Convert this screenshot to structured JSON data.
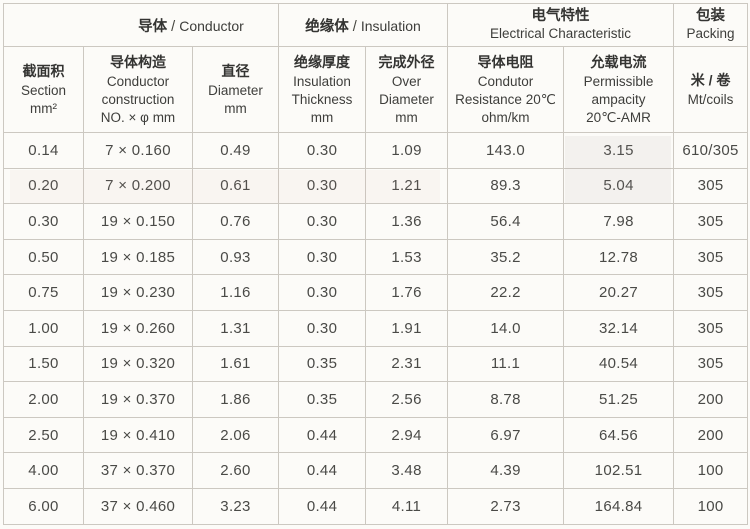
{
  "colors": {
    "background": "#fcfbf8",
    "border": "#ccc8c1",
    "header_text": "#343432",
    "body_text": "#4a4a47"
  },
  "table": {
    "groups": [
      {
        "key": "conductor",
        "zh": "导体",
        "separator": " / ",
        "en": "Conductor",
        "colspan": 3,
        "two_line": false
      },
      {
        "key": "insulation",
        "zh": "绝缘体",
        "separator": " / ",
        "en": "Insulation",
        "colspan": 2,
        "two_line": false
      },
      {
        "key": "electrical",
        "zh": "电气特性",
        "en": "Electrical Characteristic",
        "colspan": 2,
        "two_line": true
      },
      {
        "key": "packing",
        "zh": "包装",
        "en": "Packing",
        "colspan": 1,
        "two_line": true
      }
    ],
    "columns": [
      {
        "key": "section",
        "zh": "截面积",
        "en": [
          "Section",
          "mm²"
        ]
      },
      {
        "key": "construction",
        "zh": "导体构造",
        "en": [
          "Conductor",
          "construction",
          "NO. × φ mm"
        ]
      },
      {
        "key": "diameter",
        "zh": "直径",
        "en": [
          "Diameter",
          "mm"
        ]
      },
      {
        "key": "insulation-thickness",
        "zh": "绝缘厚度",
        "en": [
          "Insulation",
          "Thickness",
          "mm"
        ]
      },
      {
        "key": "over-diameter",
        "zh": "完成外径",
        "en": [
          "Over",
          "Diameter",
          "mm"
        ]
      },
      {
        "key": "resistance",
        "zh": "导体电阻",
        "en": [
          "Condutor",
          "Resistance 20℃",
          "ohm/km"
        ]
      },
      {
        "key": "ampacity",
        "zh": "允载电流",
        "en": [
          "Permissible",
          "ampacity",
          "20℃-AMR"
        ]
      },
      {
        "key": "mt-coils",
        "zh": "米 / 卷",
        "en": [
          "Mt/coils"
        ]
      }
    ],
    "rows": [
      [
        "0.14",
        "7 × 0.160",
        "0.49",
        "0.30",
        "1.09",
        "143.0",
        "3.15",
        "610/305"
      ],
      [
        "0.20",
        "7 × 0.200",
        "0.61",
        "0.30",
        "1.21",
        "89.3",
        "5.04",
        "305"
      ],
      [
        "0.30",
        "19 × 0.150",
        "0.76",
        "0.30",
        "1.36",
        "56.4",
        "7.98",
        "305"
      ],
      [
        "0.50",
        "19 × 0.185",
        "0.93",
        "0.30",
        "1.53",
        "35.2",
        "12.78",
        "305"
      ],
      [
        "0.75",
        "19 × 0.230",
        "1.16",
        "0.30",
        "1.76",
        "22.2",
        "20.27",
        "305"
      ],
      [
        "1.00",
        "19 × 0.260",
        "1.31",
        "0.30",
        "1.91",
        "14.0",
        "32.14",
        "305"
      ],
      [
        "1.50",
        "19 × 0.320",
        "1.61",
        "0.35",
        "2.31",
        "11.1",
        "40.54",
        "305"
      ],
      [
        "2.00",
        "19 × 0.370",
        "1.86",
        "0.35",
        "2.56",
        "8.78",
        "51.25",
        "200"
      ],
      [
        "2.50",
        "19 × 0.410",
        "2.06",
        "0.44",
        "2.94",
        "6.97",
        "64.56",
        "200"
      ],
      [
        "4.00",
        "37 × 0.370",
        "2.60",
        "0.44",
        "3.48",
        "4.39",
        "102.51",
        "100"
      ],
      [
        "6.00",
        "37 × 0.460",
        "3.23",
        "0.44",
        "4.11",
        "2.73",
        "164.84",
        "100"
      ]
    ]
  }
}
